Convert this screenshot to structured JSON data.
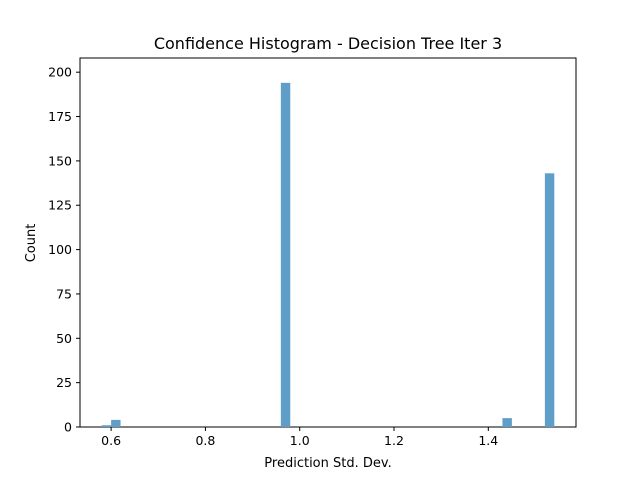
{
  "chart_data": {
    "type": "bar",
    "title": "Confidence Histogram - Decision Tree Iter 3",
    "xlabel": "Prediction Std. Dev.",
    "ylabel": "Count",
    "xlim": [
      0.534,
      1.586
    ],
    "ylim": [
      0,
      208
    ],
    "xticks": [
      0.6,
      0.8,
      1.0,
      1.2,
      1.4
    ],
    "yticks": [
      0,
      25,
      50,
      75,
      100,
      125,
      150,
      175,
      200
    ],
    "grid": false,
    "bar_color": "#5f9ec9",
    "bins": [
      {
        "x0": 0.58,
        "x1": 0.6,
        "value": 1
      },
      {
        "x0": 0.6,
        "x1": 0.62,
        "value": 4
      },
      {
        "x0": 0.96,
        "x1": 0.98,
        "value": 194
      },
      {
        "x0": 1.43,
        "x1": 1.45,
        "value": 5
      },
      {
        "x0": 1.52,
        "x1": 1.54,
        "value": 143
      }
    ]
  }
}
